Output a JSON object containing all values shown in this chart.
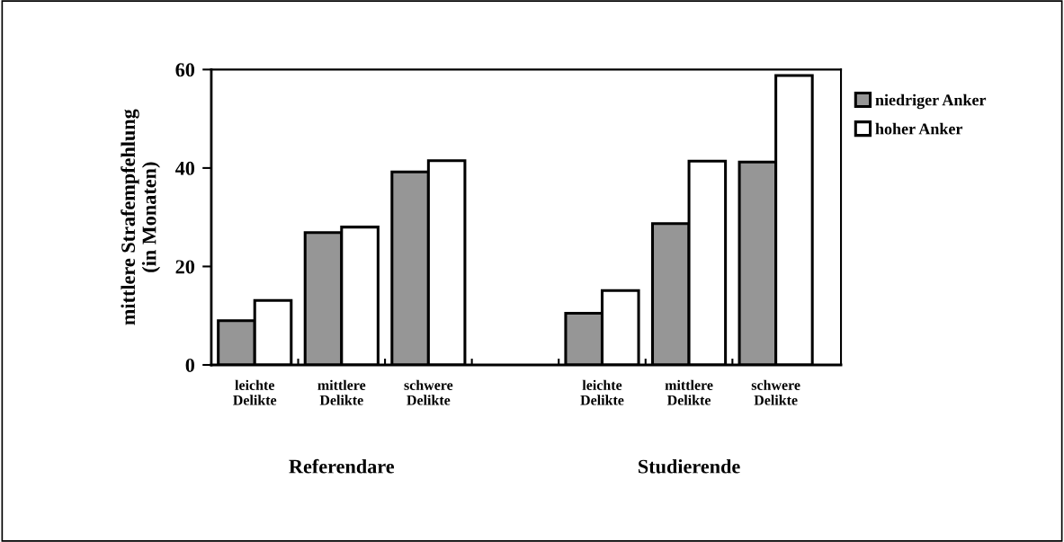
{
  "chart_data": {
    "type": "bar",
    "ylabel": "mittlere Strafempfehlung\n(in Monaten)",
    "categories": [
      "leichte\nDelikte",
      "mittlere\nDelikte",
      "schwere\nDelikte",
      null,
      "leichte\nDelikte",
      "mittlere\nDelikte",
      "schwere\nDelikte"
    ],
    "series": [
      {
        "name": "niedriger Anker",
        "color": "#969696",
        "values": [
          9.0,
          26.9,
          39.2,
          null,
          10.5,
          28.7,
          41.2
        ]
      },
      {
        "name": "hoher Anker",
        "color": "#ffffff",
        "values": [
          13.1,
          28.0,
          41.5,
          null,
          15.1,
          41.4,
          58.8
        ]
      }
    ],
    "annotations": [
      "Referendare",
      "Studierende"
    ],
    "ylim": [
      0,
      60
    ],
    "yticks": [
      0,
      20,
      40,
      60
    ],
    "grid": false,
    "legend": "right"
  }
}
